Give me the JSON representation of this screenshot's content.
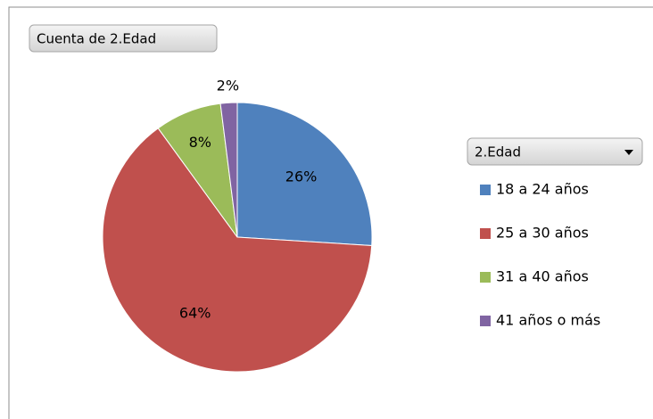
{
  "chart_data": {
    "type": "pie",
    "field_button": "Cuenta de 2.Edad",
    "legend_title": "2.Edad",
    "categories": [
      "18 a 24 años",
      "25 a 30 años",
      "31 a 40 años",
      "41 años o más"
    ],
    "values": [
      26,
      64,
      8,
      2
    ],
    "value_labels": [
      "26%",
      "64%",
      "8%",
      "2%"
    ],
    "colors": [
      "#4f81bd",
      "#c0504d",
      "#9bbb59",
      "#8064a2"
    ],
    "legend": "right"
  }
}
